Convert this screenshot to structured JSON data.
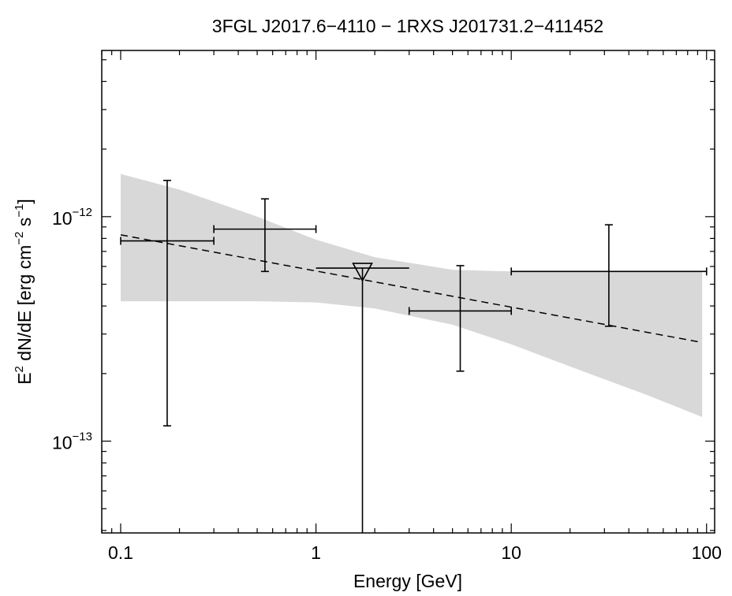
{
  "chart_data": {
    "type": "scatter",
    "title": "3FGL J2017.6−4110 − 1RXS J201731.2−411452",
    "xlabel": "Energy [GeV]",
    "ylabel": {
      "parts": [
        "E",
        "2",
        " dN/dE [erg cm",
        "−2",
        " s",
        "−1",
        "]"
      ]
    },
    "x_scale": "log",
    "y_scale": "log",
    "xlim": [
      0.08,
      110
    ],
    "ylim": [
      3.9e-14,
      5.5e-12
    ],
    "x_ticks": [
      {
        "value": 0.1,
        "label": "0.1"
      },
      {
        "value": 1,
        "label": "1"
      },
      {
        "value": 10,
        "label": "10"
      },
      {
        "value": 100,
        "label": "100"
      }
    ],
    "y_ticks": [
      {
        "value": 1e-13,
        "base": "10",
        "exponent": "−13"
      },
      {
        "value": 1e-12,
        "base": "10",
        "exponent": "−12"
      }
    ],
    "grid": false,
    "legend": "none",
    "colors": {
      "band": "#d8d8d8",
      "line": "#000000"
    },
    "butterfly": {
      "x": [
        0.1,
        0.2,
        0.5,
        1,
        2,
        5,
        10,
        20,
        50,
        95
      ],
      "upper": [
        1.55e-12,
        1.32e-12,
        1e-12,
        7.9e-13,
        6.6e-13,
        5.8e-13,
        5.7e-13,
        5.7e-13,
        5.7e-13,
        5.7e-13
      ],
      "lower": [
        4.2e-13,
        4.2e-13,
        4.2e-13,
        4.15e-13,
        3.9e-13,
        3.3e-13,
        2.7e-13,
        2.15e-13,
        1.6e-13,
        1.28e-13
      ]
    },
    "model_line": {
      "style": "dashed",
      "x": [
        0.1,
        95
      ],
      "y": [
        8.3e-13,
        2.75e-13
      ]
    },
    "points": [
      {
        "x": 0.173,
        "y": 7.8e-13,
        "xlow": 0.1,
        "xhigh": 0.3,
        "ylow": 1.17e-13,
        "yhigh": 1.45e-12
      },
      {
        "x": 0.548,
        "y": 8.8e-13,
        "xlow": 0.3,
        "xhigh": 1.0,
        "ylow": 5.7e-13,
        "yhigh": 1.2e-12
      },
      {
        "x": 5.48,
        "y": 3.8e-13,
        "xlow": 3.0,
        "xhigh": 10.0,
        "ylow": 2.05e-13,
        "yhigh": 6.05e-13
      },
      {
        "x": 31.6,
        "y": 5.7e-13,
        "xlow": 10.0,
        "xhigh": 100.0,
        "ylow": 3.25e-13,
        "yhigh": 9.2e-13
      }
    ],
    "upper_limits": [
      {
        "x": 1.73,
        "y": 5.9e-13,
        "xlow": 1.0,
        "xhigh": 3.0
      }
    ]
  }
}
